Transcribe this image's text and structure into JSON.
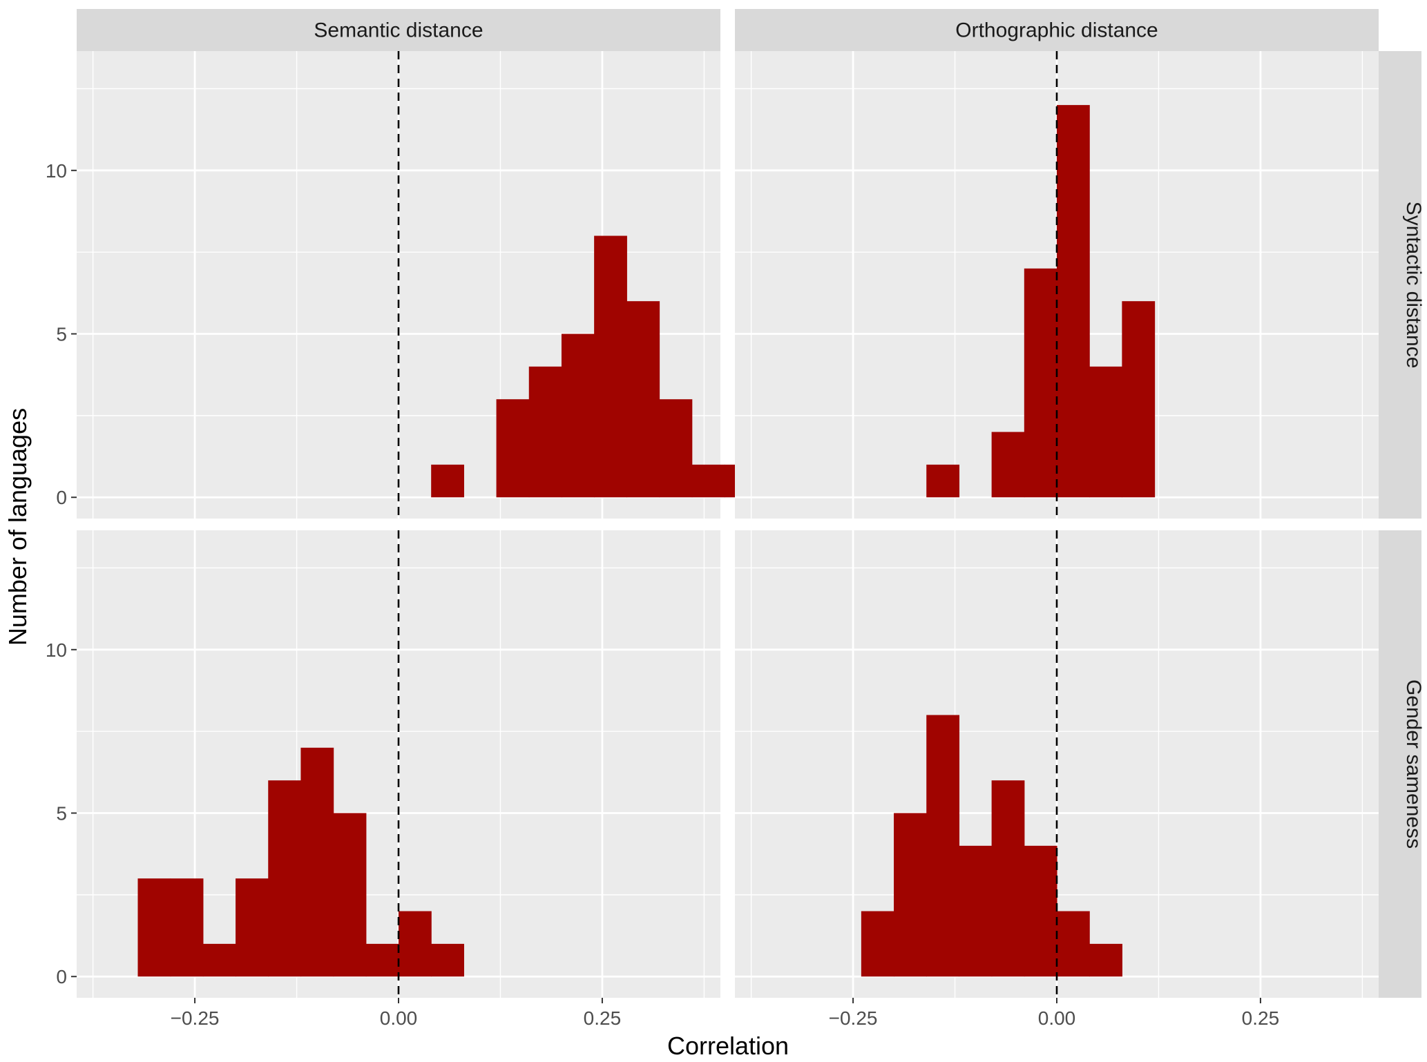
{
  "chart_data": {
    "type": "bar",
    "subtype": "faceted-histogram",
    "xlabel": "Correlation",
    "ylabel": "Number of languages",
    "xlim": [
      -0.395,
      0.395
    ],
    "ylim": [
      -0.65,
      13.65
    ],
    "x_ticks": [
      -0.25,
      0.0,
      0.25
    ],
    "x_tick_labels": [
      "−0.25",
      "0.00",
      "0.25"
    ],
    "y_ticks": [
      0,
      5,
      10
    ],
    "y_tick_labels": [
      "0",
      "5",
      "10"
    ],
    "bin_width": 0.04,
    "reference_line": {
      "x": 0,
      "style": "dashed"
    },
    "bar_color": "#a00400",
    "panel_background": "#ebebeb",
    "strip_background": "#d9d9d9",
    "col_facets": [
      "Semantic distance",
      "Orthographic distance"
    ],
    "row_facets": [
      "Syntactic distance",
      "Gender sameness"
    ],
    "panels": [
      {
        "row": "Syntactic distance",
        "col": "Semantic distance",
        "bins": [
          {
            "x": 0.06,
            "count": 1
          },
          {
            "x": 0.14,
            "count": 3
          },
          {
            "x": 0.18,
            "count": 4
          },
          {
            "x": 0.22,
            "count": 5
          },
          {
            "x": 0.26,
            "count": 8
          },
          {
            "x": 0.3,
            "count": 6
          },
          {
            "x": 0.34,
            "count": 3
          },
          {
            "x": 0.38,
            "count": 1
          },
          {
            "x": 0.42,
            "count": 1
          }
        ]
      },
      {
        "row": "Syntactic distance",
        "col": "Orthographic distance",
        "bins": [
          {
            "x": -0.14,
            "count": 1
          },
          {
            "x": -0.06,
            "count": 2
          },
          {
            "x": -0.02,
            "count": 7
          },
          {
            "x": 0.02,
            "count": 12
          },
          {
            "x": 0.06,
            "count": 4
          },
          {
            "x": 0.1,
            "count": 6
          }
        ]
      },
      {
        "row": "Gender sameness",
        "col": "Semantic distance",
        "bins": [
          {
            "x": -0.3,
            "count": 3
          },
          {
            "x": -0.26,
            "count": 3
          },
          {
            "x": -0.22,
            "count": 1
          },
          {
            "x": -0.18,
            "count": 3
          },
          {
            "x": -0.14,
            "count": 6
          },
          {
            "x": -0.1,
            "count": 7
          },
          {
            "x": -0.06,
            "count": 5
          },
          {
            "x": -0.02,
            "count": 1
          },
          {
            "x": 0.02,
            "count": 2
          },
          {
            "x": 0.06,
            "count": 1
          }
        ]
      },
      {
        "row": "Gender sameness",
        "col": "Orthographic distance",
        "bins": [
          {
            "x": -0.22,
            "count": 2
          },
          {
            "x": -0.18,
            "count": 5
          },
          {
            "x": -0.14,
            "count": 8
          },
          {
            "x": -0.1,
            "count": 4
          },
          {
            "x": -0.06,
            "count": 6
          },
          {
            "x": -0.02,
            "count": 4
          },
          {
            "x": 0.02,
            "count": 2
          },
          {
            "x": 0.06,
            "count": 1
          }
        ]
      }
    ]
  }
}
